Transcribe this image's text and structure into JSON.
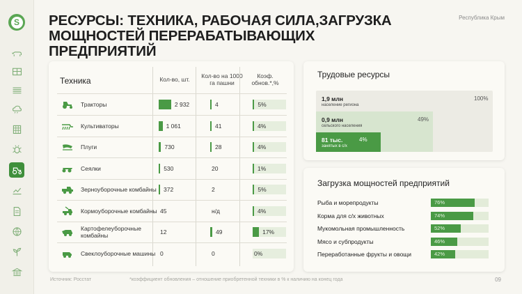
{
  "title": "РЕСУРСЫ: ТЕХНИКА, РАБОЧАЯ СИЛА,ЗАГРУЗКА МОЩНОСТЕЙ ПЕРЕРАБАТЫВАЮЩИХ ПРЕДПРИЯТИЙ",
  "region": "Республика Крым",
  "logo_letter": "S",
  "sidebar": {
    "icons": [
      "cattle-icon",
      "greenhouse-icon",
      "field-icon",
      "weather-icon",
      "building-grid-icon",
      "bug-icon",
      "tractor-icon",
      "growth-chart-icon",
      "document-icon",
      "network-icon",
      "plant-icon",
      "bank-icon"
    ],
    "active_index": 6
  },
  "machinery": {
    "header": {
      "name": "Техника",
      "col1": "Кол-во, шт.",
      "col2": "Кол-во на 1000 га пашни",
      "col3": "Коэф. обнов.*,%"
    },
    "rows": [
      {
        "name": "Тракторы",
        "icon": "tractor-icon",
        "count": "2 932",
        "count_fill": 0.32,
        "per1000": "4",
        "per1000_fill": 0.03,
        "renew": "5%",
        "renew_fill": 0.05
      },
      {
        "name": "Культиваторы",
        "icon": "cultivator-icon",
        "count": "1 061",
        "count_fill": 0.1,
        "per1000": "41",
        "per1000_fill": 0.03,
        "renew": "4%",
        "renew_fill": 0.04
      },
      {
        "name": "Плуги",
        "icon": "plough-icon",
        "count": "730",
        "count_fill": 0.06,
        "per1000": "28",
        "per1000_fill": 0.03,
        "renew": "4%",
        "renew_fill": 0.04
      },
      {
        "name": "Сеялки",
        "icon": "seeder-icon",
        "count": "530",
        "count_fill": 0.04,
        "per1000": "20",
        "per1000_fill": 0.0,
        "renew": "1%",
        "renew_fill": 0.02
      },
      {
        "name": "Зерноуборочные комбайны",
        "icon": "grain-harvester-icon",
        "count": "372",
        "count_fill": 0.03,
        "per1000": "2",
        "per1000_fill": 0.0,
        "renew": "5%",
        "renew_fill": 0.05
      },
      {
        "name": "Кормоуборочные комбайны",
        "icon": "forage-harvester-icon",
        "count": "45",
        "count_fill": 0.0,
        "per1000": "н/д",
        "per1000_fill": 0.0,
        "renew": "4%",
        "renew_fill": 0.04
      },
      {
        "name": "Картофелеуборочные комбайны",
        "icon": "potato-harvester-icon",
        "count": "12",
        "count_fill": 0.0,
        "per1000": "49",
        "per1000_fill": 0.06,
        "renew": "17%",
        "renew_fill": 0.19
      },
      {
        "name": "Свеклоуборочные машины",
        "icon": "beet-harvester-icon",
        "count": "0",
        "count_fill": 0.0,
        "per1000": "0",
        "per1000_fill": 0.0,
        "renew": "0%",
        "renew_fill": 0.0
      }
    ]
  },
  "labor": {
    "title": "Трудовые ресурсы",
    "items": [
      {
        "value": "1,9 млн",
        "label": "население региона",
        "pct": "100%"
      },
      {
        "value": "0,9 млн",
        "label": "сельского населения",
        "pct": "49%"
      },
      {
        "value": "81 тыс.",
        "label": "занятых в с/х",
        "pct": "4%"
      }
    ]
  },
  "load": {
    "title": "Загрузка мощностей предприятий",
    "items": [
      {
        "name": "Рыба и морепродукты",
        "value": "76%",
        "fill": 0.76
      },
      {
        "name": "Корма для с/х животных",
        "value": "74%",
        "fill": 0.74
      },
      {
        "name": "Мукомольная промышленность",
        "value": "52%",
        "fill": 0.52
      },
      {
        "name": "Мясо и субпродукты",
        "value": "46%",
        "fill": 0.46
      },
      {
        "name": "Переработанные фрукты и овощи",
        "value": "42%",
        "fill": 0.42
      }
    ]
  },
  "footer": {
    "source": "Источник: Росстат",
    "note": "*коэффициент обновления – отношение приобретенной техники в % к наличию на конец года",
    "page": "09"
  },
  "colors": {
    "accent": "#4a9a45",
    "light_accent": "#d7e5cf",
    "background": "#f7f6f1"
  }
}
